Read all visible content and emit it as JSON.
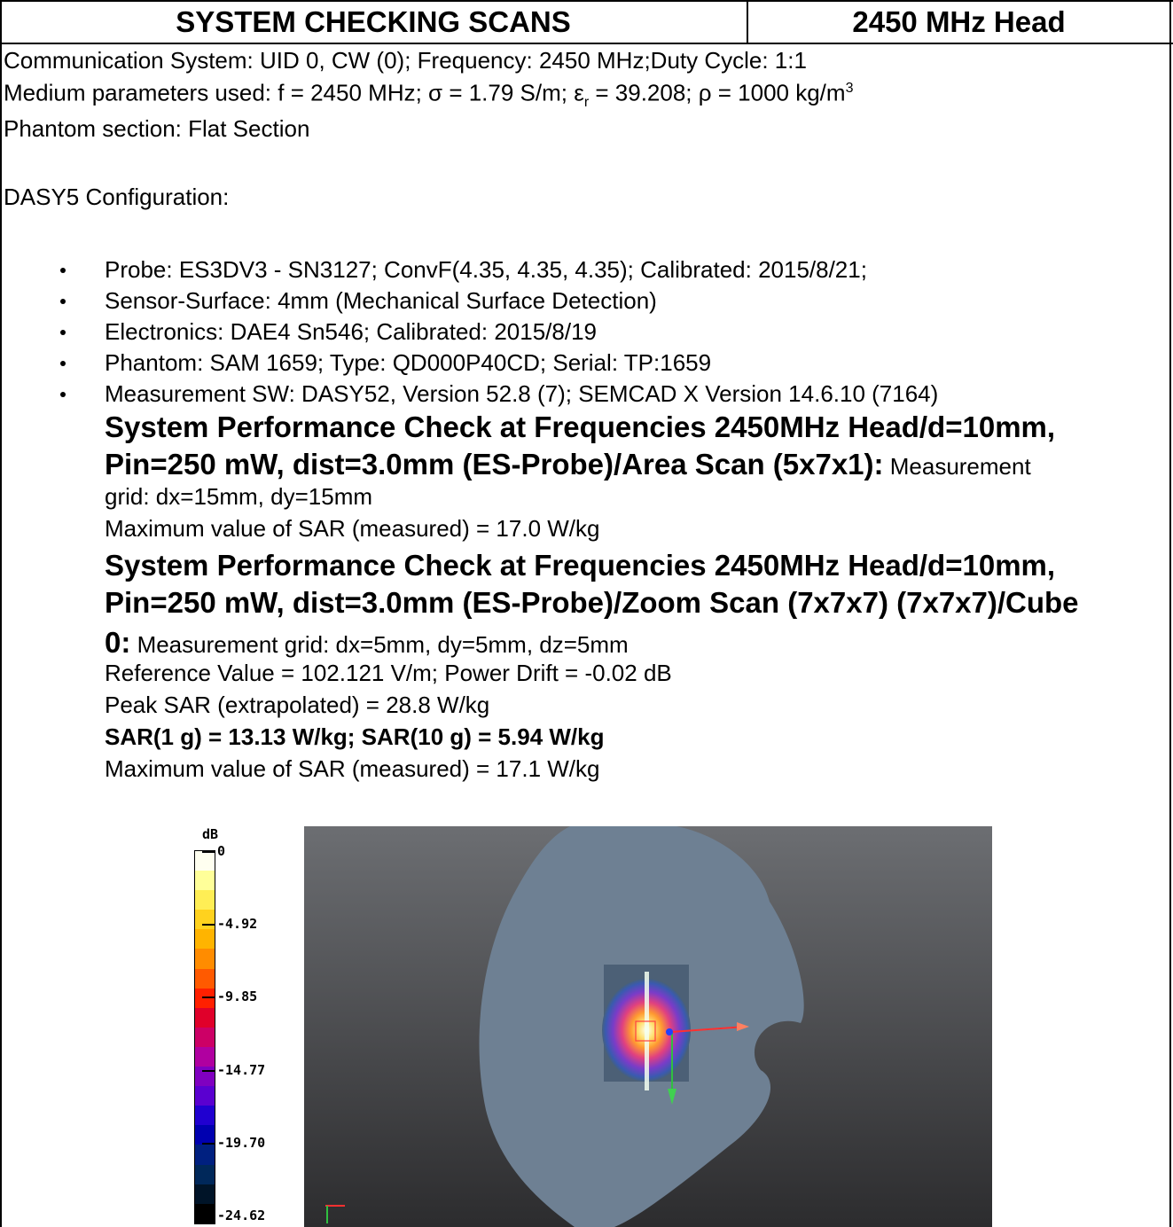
{
  "header": {
    "left_title": "SYSTEM CHECKING SCANS",
    "right_title": "2450 MHz Head"
  },
  "info": {
    "comm_system": "Communication System: UID 0, CW (0); Frequency: 2450 MHz;Duty Cycle: 1:1",
    "medium_prefix": "Medium parameters used: f = 2450 MHz; σ = 1.79 S/m; ε",
    "medium_sub": "r",
    "medium_mid": " = 39.208; ρ = 1000 kg/m",
    "medium_sup": "3",
    "phantom_section": "Phantom section: Flat Section",
    "config_heading": "DASY5 Configuration:"
  },
  "config_items": [
    "Probe: ES3DV3 - SN3127; ConvF(4.35, 4.35, 4.35); Calibrated: 2015/8/21;",
    "Sensor-Surface: 4mm (Mechanical Surface Detection)",
    "Electronics: DAE4 Sn546; Calibrated: 2015/8/19",
    "Phantom: SAM 1659; Type: QD000P40CD; Serial: TP:1659",
    "Measurement SW: DASY52, Version 52.8 (7); SEMCAD X Version 14.6.10 (7164)"
  ],
  "area_scan": {
    "title_line1": "System Performance Check at Frequencies 2450MHz Head/d=10mm,",
    "title_line2": "Pin=250 mW, dist=3.0mm (ES-Probe)/Area Scan (5x7x1):",
    "title_line2_tail": " Measurement",
    "grid": "grid: dx=15mm, dy=15mm",
    "max_sar": "Maximum value of SAR (measured) = 17.0 W/kg"
  },
  "zoom_scan": {
    "title_line1": "System Performance Check at Frequencies 2450MHz Head/d=10mm,",
    "title_line2": "Pin=250 mW, dist=3.0mm (ES-Probe)/Zoom Scan (7x7x7) (7x7x7)/Cube",
    "title_line3": "0:",
    "grid": " Measurement grid: dx=5mm, dy=5mm, dz=5mm",
    "reference": "Reference Value = 102.121 V/m; Power Drift = -0.02 dB",
    "peak": "Peak SAR (extrapolated) = 28.8 W/kg",
    "sar_values": "SAR(1 g) = 13.13 W/kg; SAR(10 g) = 5.94 W/kg",
    "max_sar": "Maximum value of SAR (measured) = 17.1 W/kg"
  },
  "colorbar": {
    "unit": "dB",
    "ticks": [
      "0",
      "-4.92",
      "-9.85",
      "-14.77",
      "-19.70",
      "-24.62"
    ],
    "colors": [
      "#fffff0",
      "#ffff99",
      "#ffee55",
      "#ffd21e",
      "#ffb400",
      "#ff8c00",
      "#ff5a00",
      "#ff2000",
      "#e0002a",
      "#cc0066",
      "#b000a0",
      "#8000c0",
      "#5a00d0",
      "#2000d0",
      "#0000b0",
      "#002080",
      "#00285a",
      "#001428",
      "#000000"
    ]
  }
}
